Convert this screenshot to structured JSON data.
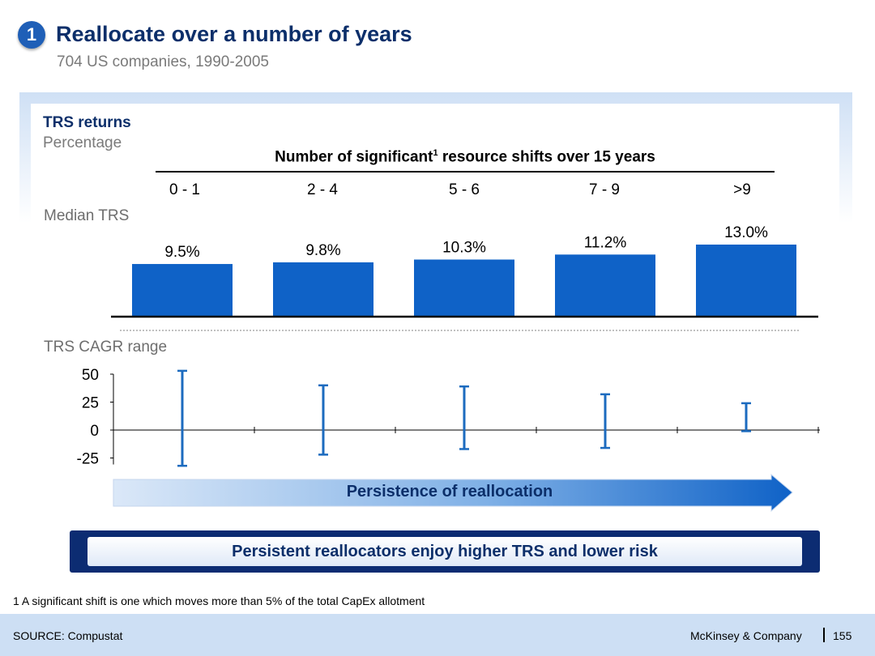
{
  "header": {
    "badge": "1",
    "title": "Reallocate over a number of years",
    "subtitle": "704 US companies, 1990-2005"
  },
  "panel": {
    "trs_label": "TRS returns",
    "pct_label": "Percentage",
    "shift_title": "Number of significant",
    "shift_title_sup": "1",
    "shift_title_rest": " resource shifts over 15 years",
    "median_label": "Median TRS",
    "cagr_label": "TRS CAGR range"
  },
  "chart_data": [
    {
      "type": "bar",
      "title": "Median TRS",
      "categories": [
        "0 - 1",
        "2 - 4",
        "5 - 6",
        "7 - 9",
        ">9"
      ],
      "values": [
        9.5,
        9.8,
        10.3,
        11.2,
        13.0
      ],
      "data_labels": [
        "9.5%",
        "9.8%",
        "10.3%",
        "11.2%",
        "13.0%"
      ],
      "ylim": [
        0,
        13.0
      ],
      "bar_color": "#0f62c7"
    },
    {
      "type": "range",
      "title": "TRS CAGR range",
      "categories": [
        "0 - 1",
        "2 - 4",
        "5 - 6",
        "7 - 9",
        ">9"
      ],
      "lows": [
        -32,
        -22,
        -17,
        -16,
        -1
      ],
      "highs": [
        53,
        40,
        39,
        32,
        24
      ],
      "yticks": [
        50,
        25,
        0,
        -25
      ],
      "ytick_labels": [
        "50",
        "25",
        "0",
        "-25"
      ],
      "ylim": [
        -25,
        50
      ],
      "color": "#1c6bbf"
    }
  ],
  "arrow": {
    "label": "Persistence of reallocation"
  },
  "takeaway": "Persistent reallocators enjoy higher TRS and lower risk",
  "footnote": "1 A significant shift is one which moves more than 5% of the total CapEx allotment",
  "footer": {
    "source": "SOURCE: Compustat",
    "brand": "McKinsey & Company",
    "page": "155"
  },
  "colors": {
    "navy": "#0c2f6a",
    "accent": "#0f62c7",
    "footer_bg": "#cddff4"
  }
}
